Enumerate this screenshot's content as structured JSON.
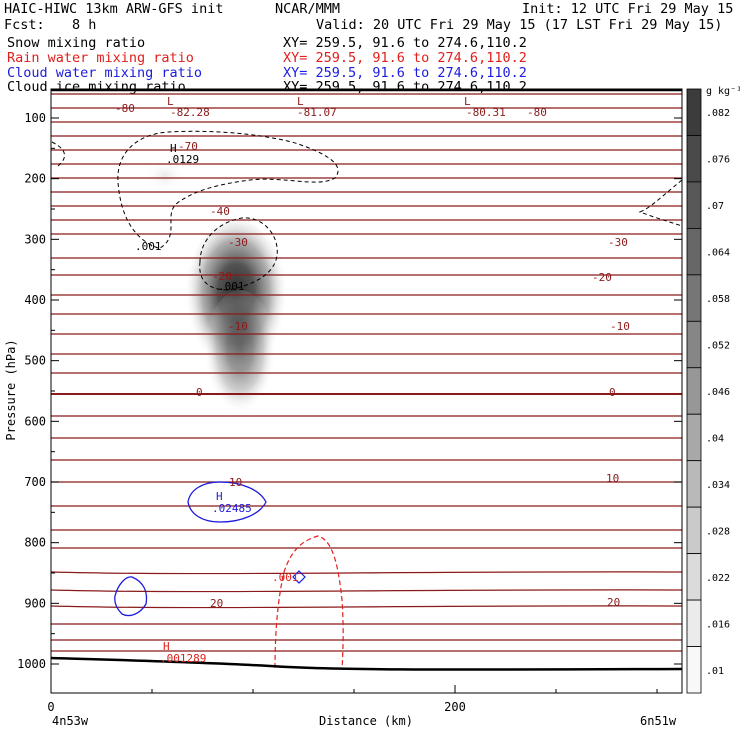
{
  "header": {
    "title_left": "HAIC-HIWC 13km ARW-GFS init",
    "title_mid": "NCAR/MMM",
    "init": "Init: 12 UTC Fri 29 May 15",
    "fcst_label": "Fcst:",
    "fcst_value": "8 h",
    "valid": "Valid: 20 UTC Fri 29 May 15 (17 LST Fri 29 May 15)",
    "fields": [
      {
        "name": "Snow mixing ratio",
        "xy": "XY= 259.5, 91.6 to 274.6,110.2",
        "color": "#000000"
      },
      {
        "name": "Rain water mixing ratio",
        "xy": "XY= 259.5, 91.6 to 274.6,110.2",
        "color": "#e0201c"
      },
      {
        "name": "Cloud water mixing ratio",
        "xy": "XY= 259.5, 91.6 to 274.6,110.2",
        "color": "#1c1ce0"
      },
      {
        "name": "Cloud ice mixing ratio",
        "xy": "XY= 259.5, 91.6 to 274.6,110.2",
        "color": "#000000"
      }
    ]
  },
  "chart_data": {
    "type": "cross-section",
    "xlabel": "Distance (km)",
    "ylabel": "Pressure (hPa)",
    "x_ticks": [
      "0",
      "200"
    ],
    "y_ticks": [
      "100",
      "200",
      "300",
      "400",
      "500",
      "600",
      "700",
      "800",
      "900",
      "1000"
    ],
    "x_left_label": "4n53w",
    "x_right_label": "6n51w",
    "colorbar_unit": "g kg⁻¹",
    "colorbar_levels": [
      ".082",
      ".076",
      ".07",
      ".064",
      ".058",
      ".052",
      ".046",
      ".04",
      ".034",
      ".028",
      ".022",
      ".016",
      ".01"
    ],
    "colorbar_colors": [
      "#3c3c3c",
      "#4a4a4a",
      "#585858",
      "#676767",
      "#767676",
      "#868686",
      "#979797",
      "#a8a8a8",
      "#b9b9b9",
      "#cacaca",
      "#dbdbdb",
      "#ebebeb",
      "#f8f8f8"
    ],
    "temperature_contour_labels": [
      "-80",
      "-70",
      "-40",
      "-30",
      "-30",
      "-20",
      "-20",
      "-10",
      "-10",
      "0",
      "0",
      "10",
      "10",
      "20",
      "20"
    ],
    "extrema_labels": [
      {
        "text": "L",
        "value": "-82.28"
      },
      {
        "text": "L",
        "value": "-81.07"
      },
      {
        "text": "L",
        "value": "-80.31"
      },
      {
        "text": "H",
        "value": ".0129"
      },
      {
        "text": "H",
        "value": ".02485"
      },
      {
        "text": "H",
        "value": ".001289"
      }
    ],
    "isoline_labels": [
      ".001",
      ".001",
      ".001"
    ],
    "isoline_label_80": "-80"
  },
  "colors": {
    "temperature": "#8b1a1a",
    "snow": "#000000",
    "rain": "#e0201c",
    "cloud_water": "#1c1ce0"
  }
}
